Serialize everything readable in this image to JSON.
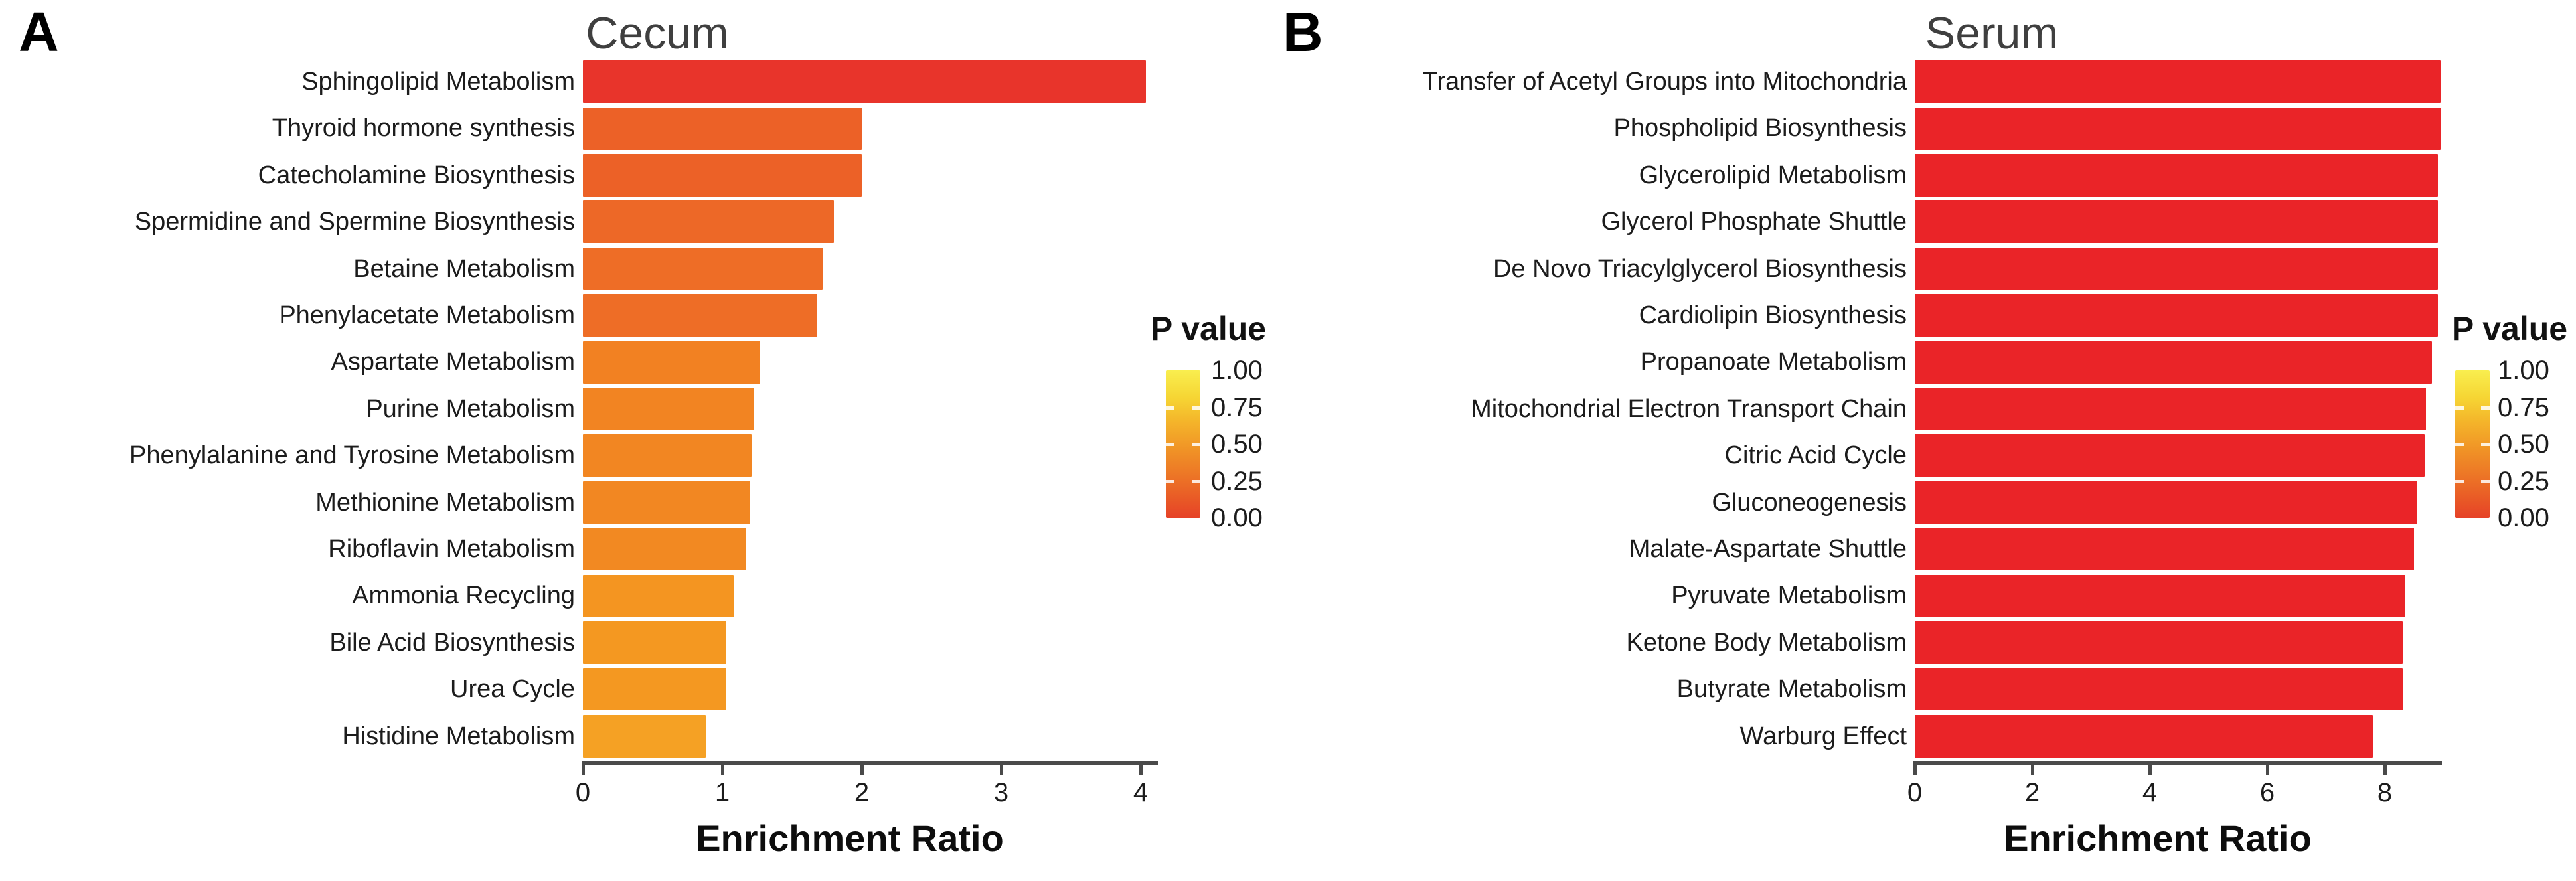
{
  "figure_background": "#ffffff",
  "chart_data": [
    {
      "type": "bar",
      "orientation": "horizontal",
      "panel_letter": "A",
      "title": "Cecum",
      "xlabel": "Enrichment Ratio",
      "legend_position": "right",
      "grid": false,
      "xlim": [
        0,
        4.15
      ],
      "xticks": [
        0,
        1,
        2,
        3,
        4
      ],
      "xtick_labels": [
        "0",
        "1",
        "2",
        "3",
        "4"
      ],
      "categories": [
        "Sphingolipid Metabolism",
        "Thyroid hormone synthesis",
        "Catecholamine Biosynthesis",
        "Spermidine and Spermine Biosynthesis",
        "Betaine Metabolism",
        "Phenylacetate Metabolism",
        "Aspartate Metabolism",
        "Purine Metabolism",
        "Phenylalanine and Tyrosine Metabolism",
        "Methionine Metabolism",
        "Riboflavin Metabolism",
        "Ammonia Recycling",
        "Bile Acid Biosynthesis",
        "Urea Cycle",
        "Histidine Metabolism"
      ],
      "values": [
        4.04,
        2.0,
        2.0,
        1.8,
        1.72,
        1.68,
        1.27,
        1.23,
        1.21,
        1.2,
        1.17,
        1.08,
        1.03,
        1.03,
        0.88
      ],
      "bar_colors": [
        "#E8342B",
        "#EC6127",
        "#EC6127",
        "#ED6827",
        "#EE6D26",
        "#EE6D26",
        "#F28122",
        "#F28422",
        "#F28622",
        "#F28722",
        "#F28922",
        "#F49521",
        "#F49821",
        "#F49821",
        "#F5A124"
      ],
      "color_encoding": "P value (red = 0.00, yellow = 1.00)",
      "legend": {
        "title": "P value",
        "tick_labels": [
          "1.00",
          "0.75",
          "0.50",
          "0.25",
          "0.00"
        ],
        "gradient_top_color": "#F9EE4F",
        "gradient_bottom_color": "#E64227"
      }
    },
    {
      "type": "bar",
      "orientation": "horizontal",
      "panel_letter": "B",
      "title": "Serum",
      "xlabel": "Enrichment Ratio",
      "legend_position": "right",
      "grid": false,
      "xlim": [
        0,
        9.0
      ],
      "xticks": [
        0,
        2,
        4,
        6,
        8
      ],
      "xtick_labels": [
        "0",
        "2",
        "4",
        "6",
        "8"
      ],
      "categories": [
        "Transfer of Acetyl Groups into Mitochondria",
        "Phospholipid Biosynthesis",
        "Glycerolipid Metabolism",
        "Glycerol Phosphate Shuttle",
        "De Novo Triacylglycerol Biosynthesis",
        "Cardiolipin Biosynthesis",
        "Propanoate Metabolism",
        "Mitochondrial Electron Transport Chain",
        "Citric Acid Cycle",
        "Gluconeogenesis",
        "Malate-Aspartate Shuttle",
        "Pyruvate Metabolism",
        "Ketone Body Metabolism",
        "Butyrate Metabolism",
        "Warburg Effect"
      ],
      "values": [
        8.95,
        8.95,
        8.9,
        8.9,
        8.9,
        8.9,
        8.8,
        8.7,
        8.68,
        8.55,
        8.5,
        8.35,
        8.3,
        8.3,
        7.8
      ],
      "bar_colors": [
        "#EA2428",
        "#EA2428",
        "#EA2428",
        "#EA2428",
        "#EA2428",
        "#EA2428",
        "#EA2428",
        "#EA2428",
        "#EA2428",
        "#EA2428",
        "#EA2428",
        "#EA2428",
        "#EA2428",
        "#EA2428",
        "#EA2428"
      ],
      "color_encoding": "P value (red = 0.00, yellow = 1.00)",
      "legend": {
        "title": "P value",
        "tick_labels": [
          "1.00",
          "0.75",
          "0.50",
          "0.25",
          "0.00"
        ],
        "gradient_top_color": "#F9EE4F",
        "gradient_bottom_color": "#E64227"
      }
    }
  ]
}
